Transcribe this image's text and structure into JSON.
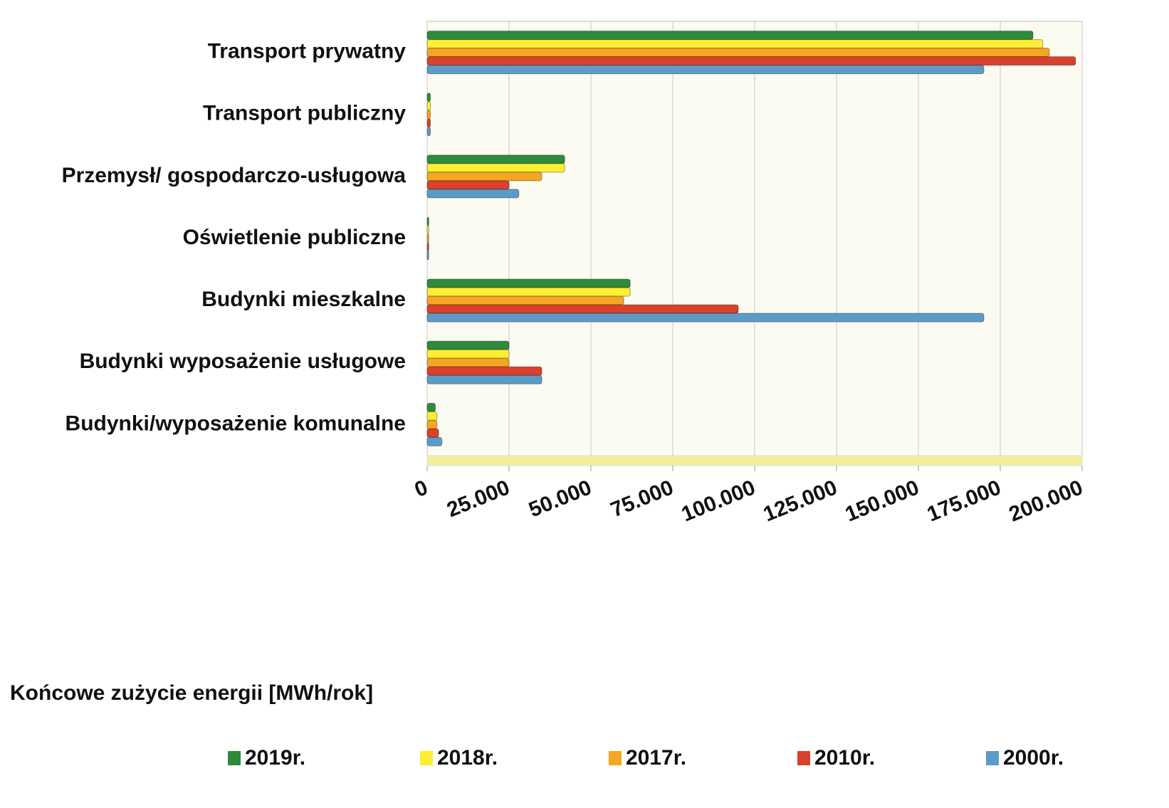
{
  "chart_data": {
    "type": "bar",
    "orientation": "horizontal",
    "x_label": "Końcowe zużycie energii [MWh/rok]",
    "categories": [
      "Transport prywatny",
      "Transport publiczny",
      "Przemysł/ gospodarczo-usługowa",
      "Oświetlenie publiczne",
      "Budynki mieszkalne",
      "Budynki wyposażenie usługowe",
      "Budynki/wyposażenie komunalne"
    ],
    "series": [
      {
        "name": "2019r.",
        "color": "#2e8b3a",
        "values": [
          185000,
          1000,
          42000,
          500,
          62000,
          25000,
          2500
        ]
      },
      {
        "name": "2018r.",
        "color": "#ffee33",
        "values": [
          188000,
          1000,
          42000,
          500,
          62000,
          25000,
          3000
        ]
      },
      {
        "name": "2017r.",
        "color": "#f5a623",
        "values": [
          190000,
          1000,
          35000,
          500,
          60000,
          25000,
          3000
        ]
      },
      {
        "name": "2010r.",
        "color": "#d9412b",
        "values": [
          198000,
          1000,
          25000,
          500,
          95000,
          35000,
          3500
        ]
      },
      {
        "name": "2000r.",
        "color": "#5b9bc8",
        "values": [
          170000,
          1000,
          28000,
          500,
          170000,
          35000,
          4500
        ]
      }
    ],
    "xlim": [
      0,
      200000
    ],
    "xticks": [
      0,
      {
        "value": 25000,
        "label": "25.000"
      },
      {
        "value": 50000,
        "label": "50.000"
      },
      {
        "value": 75000,
        "label": "75.000"
      },
      {
        "value": 100000,
        "label": "100.000"
      },
      {
        "value": 125000,
        "label": "125.000"
      },
      {
        "value": 150000,
        "label": "150.000"
      },
      {
        "value": 175000,
        "label": "175.000"
      },
      {
        "value": 200000,
        "label": "200.000"
      }
    ],
    "grid": true,
    "legend": "bottom"
  }
}
